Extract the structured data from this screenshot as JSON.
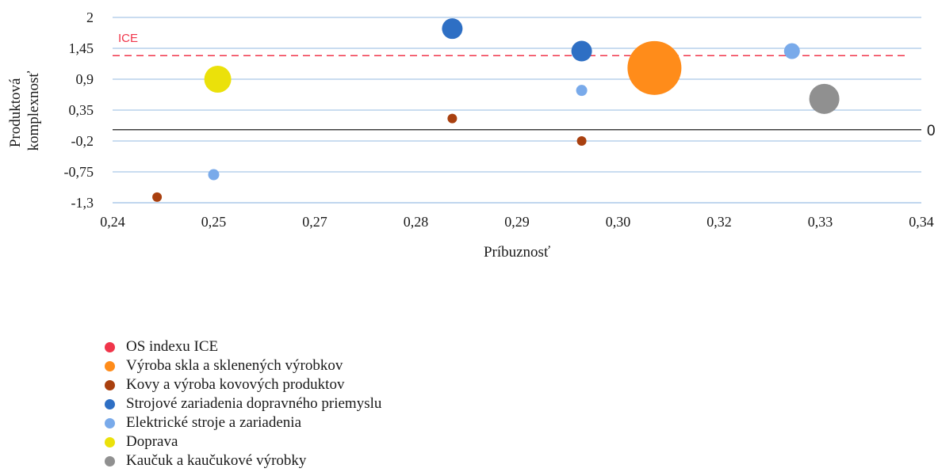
{
  "chart_data": {
    "type": "scatter",
    "subtype": "bubble",
    "xlabel": "Príbuznosť",
    "ylabel": [
      "Produktová",
      "komplexnosť"
    ],
    "xlim": [
      0.24,
      0.34
    ],
    "ylim": [
      -1.3,
      2
    ],
    "x_ticks": [
      0.24,
      0.25,
      0.27,
      0.28,
      0.29,
      0.3,
      0.32,
      0.33,
      0.34
    ],
    "x_tick_labels": [
      "0,24",
      "0,25",
      "0,27",
      "0,28",
      "0,29",
      "0,30",
      "0,32",
      "0,33",
      "0,34"
    ],
    "y_ticks": [
      2,
      1.45,
      0.9,
      0.35,
      -0.2,
      -0.75,
      -1.3
    ],
    "y_tick_labels": [
      "2",
      "1,45",
      "0,9",
      "0,35",
      "-0,2",
      "-0,75",
      "-1,3"
    ],
    "grid": "horizontal",
    "legend_position": "bottom-left",
    "reference_lines": [
      {
        "name": "ICE",
        "label": "ICE",
        "y": 1.32,
        "style": "dashed",
        "color": "#f0354a"
      },
      {
        "name": "zero",
        "label": "0",
        "y": 0,
        "style": "solid",
        "color": "#000000"
      }
    ],
    "series": [
      {
        "name": "OS indexu ICE",
        "color": "#f0354a",
        "points": []
      },
      {
        "name": "Výroba skla a sklenených výrobkov",
        "color": "#ff8c1a",
        "points": [
          {
            "x": 0.307,
            "y": 1.1,
            "size": 34
          }
        ]
      },
      {
        "name": "Kovy a výroba kovových produktov",
        "color": "#a9400f",
        "points": [
          {
            "x": 0.2455,
            "y": -1.2,
            "size": 6
          },
          {
            "x": 0.282,
            "y": 0.2,
            "size": 6
          },
          {
            "x": 0.298,
            "y": -0.2,
            "size": 6
          }
        ]
      },
      {
        "name": "Strojové zariadenia dopravného priemyslu",
        "color": "#2e6fc4",
        "points": [
          {
            "x": 0.282,
            "y": 1.8,
            "size": 13
          },
          {
            "x": 0.298,
            "y": 1.4,
            "size": 13
          }
        ]
      },
      {
        "name": "Elektrické stroje a zariadenia",
        "color": "#79aaea",
        "points": [
          {
            "x": 0.2525,
            "y": -0.8,
            "size": 7
          },
          {
            "x": 0.298,
            "y": 0.7,
            "size": 7
          },
          {
            "x": 0.324,
            "y": 1.4,
            "size": 10
          }
        ]
      },
      {
        "name": "Doprava",
        "color": "#ebe10a",
        "points": [
          {
            "x": 0.253,
            "y": 0.9,
            "size": 17
          }
        ]
      },
      {
        "name": "Kaučuk a kaučukové výrobky",
        "color": "#909090",
        "points": [
          {
            "x": 0.328,
            "y": 0.55,
            "size": 19
          }
        ]
      }
    ]
  }
}
